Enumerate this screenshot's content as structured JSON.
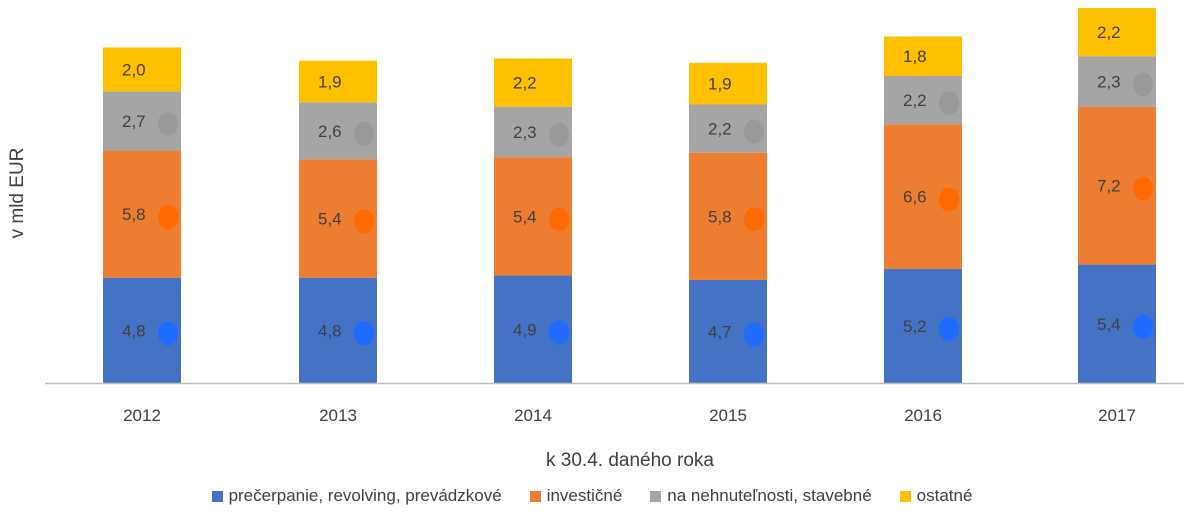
{
  "chart_data": {
    "type": "bar",
    "stacked": true,
    "categories": [
      "2012",
      "2013",
      "2014",
      "2015",
      "2016",
      "2017"
    ],
    "series": [
      {
        "name": "prečerpanie, revolving, prevádzkové",
        "color": "#4472C4",
        "marker_color": "#1F6BFF",
        "values": [
          4.8,
          4.8,
          4.9,
          4.7,
          5.2,
          5.4
        ]
      },
      {
        "name": "investičné",
        "color": "#ED7D31",
        "marker_color": "#FF6A00",
        "values": [
          5.8,
          5.4,
          5.4,
          5.8,
          6.6,
          7.2
        ]
      },
      {
        "name": "na nehnuteľnosti, stavebné",
        "color": "#A5A5A5",
        "marker_color": "#999999",
        "values": [
          2.7,
          2.6,
          2.3,
          2.2,
          2.2,
          2.3
        ]
      },
      {
        "name": "ostatné",
        "color": "#FFC000",
        "marker_color": "#FFC000",
        "values": [
          2.0,
          1.9,
          2.2,
          1.9,
          1.8,
          2.2
        ]
      }
    ],
    "data_labels": [
      [
        "4,8",
        "4,8",
        "4,9",
        "4,7",
        "5,2",
        "5,4"
      ],
      [
        "5,8",
        "5,4",
        "5,4",
        "5,8",
        "6,6",
        "7,2"
      ],
      [
        "2,7",
        "2,6",
        "2,3",
        "2,2",
        "2,2",
        "2,3"
      ],
      [
        "2,0",
        "1,9",
        "2,2",
        "1,9",
        "1,8",
        "2,2"
      ]
    ],
    "title": "",
    "xlabel": "k 30.4. daného roka",
    "ylabel": "v mld EUR",
    "ylim": [
      0,
      17.1
    ],
    "grid": false,
    "legend_position": "bottom",
    "axis_color": "#BFBFBF"
  }
}
